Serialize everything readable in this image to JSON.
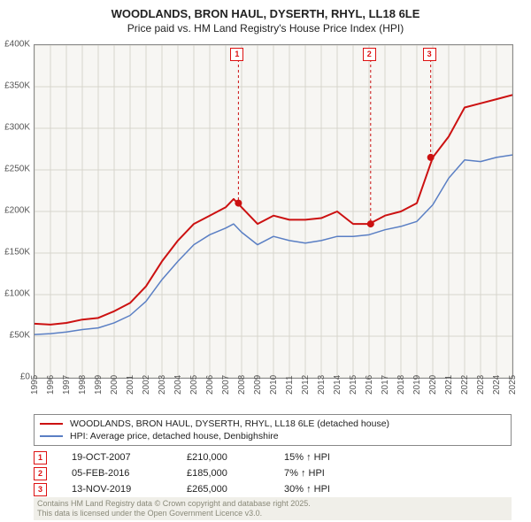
{
  "title": {
    "main": "WOODLANDS, BRON HAUL, DYSERTH, RHYL, LL18 6LE",
    "sub": "Price paid vs. HM Land Registry's House Price Index (HPI)"
  },
  "chart": {
    "type": "line",
    "background_color": "#f7f6f3",
    "border_color": "#888888",
    "grid_color": "#d7d5cd",
    "ylim": [
      0,
      400000
    ],
    "ytick_step": 50000,
    "ytick_labels": [
      "£0",
      "£50K",
      "£100K",
      "£150K",
      "£200K",
      "£250K",
      "£300K",
      "£350K",
      "£400K"
    ],
    "xlim": [
      1995,
      2025
    ],
    "xtick_step": 1,
    "xtick_labels": [
      "1995",
      "1996",
      "1997",
      "1998",
      "1999",
      "2000",
      "2001",
      "2002",
      "2003",
      "2004",
      "2005",
      "2006",
      "2007",
      "2008",
      "2009",
      "2010",
      "2011",
      "2012",
      "2013",
      "2014",
      "2015",
      "2016",
      "2017",
      "2018",
      "2019",
      "2020",
      "2021",
      "2022",
      "2023",
      "2024",
      "2025"
    ],
    "years": [
      1995,
      1996,
      1997,
      1998,
      1999,
      2000,
      2001,
      2002,
      2003,
      2004,
      2005,
      2006,
      2007,
      2007.5,
      2008,
      2009,
      2010,
      2011,
      2012,
      2013,
      2014,
      2015,
      2016,
      2017,
      2018,
      2019,
      2020,
      2021,
      2022,
      2023,
      2024,
      2025
    ],
    "series": [
      {
        "label": "WOODLANDS, BRON HAUL, DYSERTH, RHYL, LL18 6LE (detached house)",
        "color": "#cc1111",
        "line_width": 2,
        "values": [
          65000,
          64000,
          66000,
          70000,
          72000,
          80000,
          90000,
          110000,
          140000,
          165000,
          185000,
          195000,
          205000,
          215000,
          205000,
          185000,
          195000,
          190000,
          190000,
          192000,
          200000,
          185000,
          185000,
          195000,
          200000,
          210000,
          265000,
          290000,
          325000,
          330000,
          335000,
          340000
        ]
      },
      {
        "label": "HPI: Average price, detached house, Denbighshire",
        "color": "#5a7fc4",
        "line_width": 1.5,
        "values": [
          52000,
          53000,
          55000,
          58000,
          60000,
          66000,
          75000,
          92000,
          118000,
          140000,
          160000,
          172000,
          180000,
          185000,
          175000,
          160000,
          170000,
          165000,
          162000,
          165000,
          170000,
          170000,
          172000,
          178000,
          182000,
          188000,
          208000,
          240000,
          262000,
          260000,
          265000,
          268000
        ]
      }
    ],
    "markers": [
      {
        "id": "1",
        "x": 2007.8,
        "y": 210000,
        "label_y_offset": -150
      },
      {
        "id": "2",
        "x": 2016.1,
        "y": 185000,
        "label_y_offset": -165
      },
      {
        "id": "3",
        "x": 2019.87,
        "y": 265000,
        "label_y_offset": -210
      }
    ],
    "marker_color": "#cc1111",
    "marker_box_bg": "#ffffff"
  },
  "legend": {
    "rows": [
      {
        "color": "#cc1111",
        "label": "WOODLANDS, BRON HAUL, DYSERTH, RHYL, LL18 6LE (detached house)"
      },
      {
        "color": "#5a7fc4",
        "label": "HPI: Average price, detached house, Denbighshire"
      }
    ]
  },
  "sales": [
    {
      "id": "1",
      "date": "19-OCT-2007",
      "price": "£210,000",
      "delta": "15% ↑ HPI"
    },
    {
      "id": "2",
      "date": "05-FEB-2016",
      "price": "£185,000",
      "delta": "7% ↑ HPI"
    },
    {
      "id": "3",
      "date": "13-NOV-2019",
      "price": "£265,000",
      "delta": "30% ↑ HPI"
    }
  ],
  "footer": {
    "line1": "Contains HM Land Registry data © Crown copyright and database right 2025.",
    "line2": "This data is licensed under the Open Government Licence v3.0."
  },
  "style": {
    "title_fontsize": 13,
    "subtitle_fontsize": 12,
    "axis_label_fontsize": 10,
    "legend_fontsize": 10.5,
    "table_fontsize": 11,
    "footer_fontsize": 9,
    "footer_color": "#8a8a7a",
    "footer_bg": "#f0efe9"
  }
}
